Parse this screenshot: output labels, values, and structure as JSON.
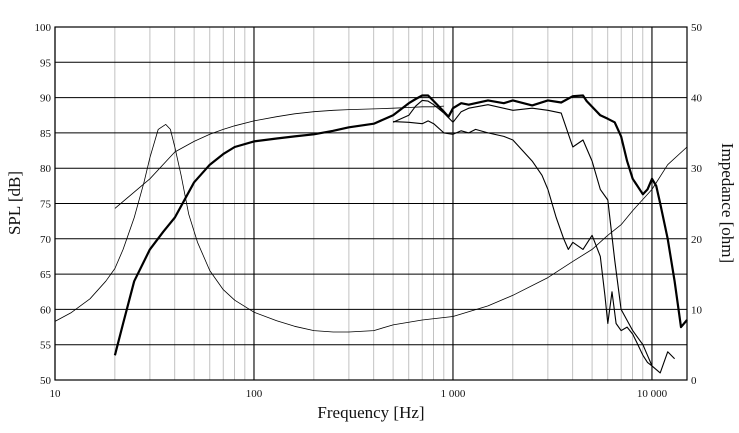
{
  "chart_data": {
    "type": "line",
    "xlabel": "Frequency [Hz]",
    "ylabel": "SPL [dB]",
    "y2label": "Impedance [ohm]",
    "x_scale": "log",
    "xlim": [
      10,
      15000
    ],
    "ylim": [
      50,
      100
    ],
    "y2lim": [
      0,
      50
    ],
    "grid": true,
    "x_tick_labels": [
      {
        "value": 10,
        "label": "10"
      },
      {
        "value": 100,
        "label": "100"
      },
      {
        "value": 1000,
        "label": "1 000"
      },
      {
        "value": 10000,
        "label": "10 000"
      }
    ],
    "y_ticks": [
      50,
      55,
      60,
      65,
      70,
      75,
      80,
      85,
      90,
      95,
      100
    ],
    "y2_ticks": [
      0,
      10,
      20,
      30,
      40,
      50
    ],
    "series": [
      {
        "axis": "left",
        "color": "#000000",
        "weight": "bold",
        "x": [
          20,
          22,
          25,
          30,
          35,
          40,
          50,
          60,
          70,
          80,
          100,
          130,
          160,
          200,
          250,
          300,
          400,
          500,
          600,
          650,
          700,
          750,
          800,
          900,
          950,
          1000,
          1100,
          1200,
          1500,
          1800,
          2000,
          2500,
          3000,
          3500,
          4000,
          4500,
          4700,
          5000,
          5500,
          6000,
          6500,
          7000,
          7500,
          8000,
          9000,
          9500,
          10000,
          10500,
          11000,
          12000,
          13000,
          14000,
          15000
        ],
        "y": [
          53.5,
          58,
          64,
          68.5,
          71,
          73,
          78,
          80.5,
          82,
          83,
          83.8,
          84.2,
          84.5,
          84.8,
          85.3,
          85.8,
          86.3,
          87.5,
          89.2,
          89.8,
          90.3,
          90.3,
          89.5,
          88,
          87.3,
          88.5,
          89.2,
          89,
          89.6,
          89.2,
          89.6,
          88.9,
          89.6,
          89.3,
          90.2,
          90.3,
          89.5,
          88.7,
          87.5,
          87,
          86.5,
          84.5,
          81,
          78.5,
          76.3,
          77,
          78.5,
          77.5,
          75,
          70,
          64,
          57.5,
          58.5
        ]
      },
      {
        "axis": "left",
        "color": "#000000",
        "weight": "normal",
        "x": [
          500,
          600,
          650,
          700,
          750,
          800,
          900,
          1000,
          1100,
          1200,
          1500,
          2000,
          2500,
          3000,
          3500,
          4000,
          4500,
          5000,
          5500,
          6000,
          6500,
          7000,
          8000,
          9000,
          10000
        ],
        "y": [
          86.5,
          87.5,
          88.8,
          89.6,
          89.5,
          89,
          87.8,
          86.5,
          88,
          88.5,
          89,
          88.2,
          88.5,
          88.2,
          87.8,
          83,
          84,
          81,
          77,
          75.5,
          67,
          60,
          57,
          55,
          52
        ]
      },
      {
        "axis": "left",
        "color": "#000000",
        "weight": "normal",
        "x": [
          500,
          600,
          700,
          750,
          800,
          900,
          1000,
          1100,
          1200,
          1300,
          1500,
          1800,
          2000,
          2500,
          2800,
          3000,
          3300,
          3600,
          3800,
          4000,
          4500,
          5000,
          5500,
          5800,
          6000,
          6300,
          6600,
          7000,
          7500,
          8000,
          8500,
          9000,
          9500,
          10000,
          11000,
          12000,
          13000
        ],
        "y": [
          86.6,
          86.5,
          86.3,
          86.7,
          86.3,
          85,
          84.8,
          85.3,
          85,
          85.5,
          85,
          84.5,
          84,
          81,
          79,
          77,
          73,
          70,
          68.5,
          69.5,
          68.5,
          70.5,
          67.5,
          62,
          58,
          62.5,
          58,
          57,
          57.5,
          56.5,
          55,
          53.5,
          52.5,
          52,
          51,
          54,
          53
        ]
      },
      {
        "axis": "right",
        "color": "#000000",
        "weight": "thin",
        "x": [
          10,
          12,
          15,
          18,
          20,
          22,
          25,
          28,
          30,
          33,
          36,
          38,
          40,
          43,
          47,
          52,
          60,
          70,
          80,
          100,
          130,
          160,
          200,
          250,
          300,
          400,
          500,
          700,
          1000,
          1500,
          2000,
          3000,
          4000,
          5000,
          6000,
          7000,
          8000,
          10000,
          12000,
          15000
        ],
        "y": [
          8.3,
          9.5,
          11.5,
          14,
          15.8,
          18.5,
          23,
          28,
          31.5,
          35.5,
          36.2,
          35.5,
          33,
          29,
          23.5,
          19.5,
          15.5,
          12.8,
          11.3,
          9.6,
          8.4,
          7.6,
          7,
          6.8,
          6.8,
          7,
          7.8,
          8.5,
          9,
          10.5,
          12,
          14.5,
          16.8,
          18.5,
          20.5,
          22,
          24,
          27,
          30.5,
          33
        ]
      },
      {
        "axis": "right",
        "color": "#000000",
        "weight": "thin",
        "x": [
          20,
          30,
          40,
          50,
          60,
          70,
          80,
          100,
          130,
          160,
          200,
          250,
          300,
          400,
          500,
          600,
          700,
          800,
          900
        ],
        "y": [
          24.3,
          28.5,
          32.3,
          33.8,
          34.8,
          35.5,
          36,
          36.7,
          37.3,
          37.7,
          38,
          38.2,
          38.3,
          38.4,
          38.5,
          38.6,
          38.7,
          38.7,
          38.8
        ]
      }
    ]
  }
}
